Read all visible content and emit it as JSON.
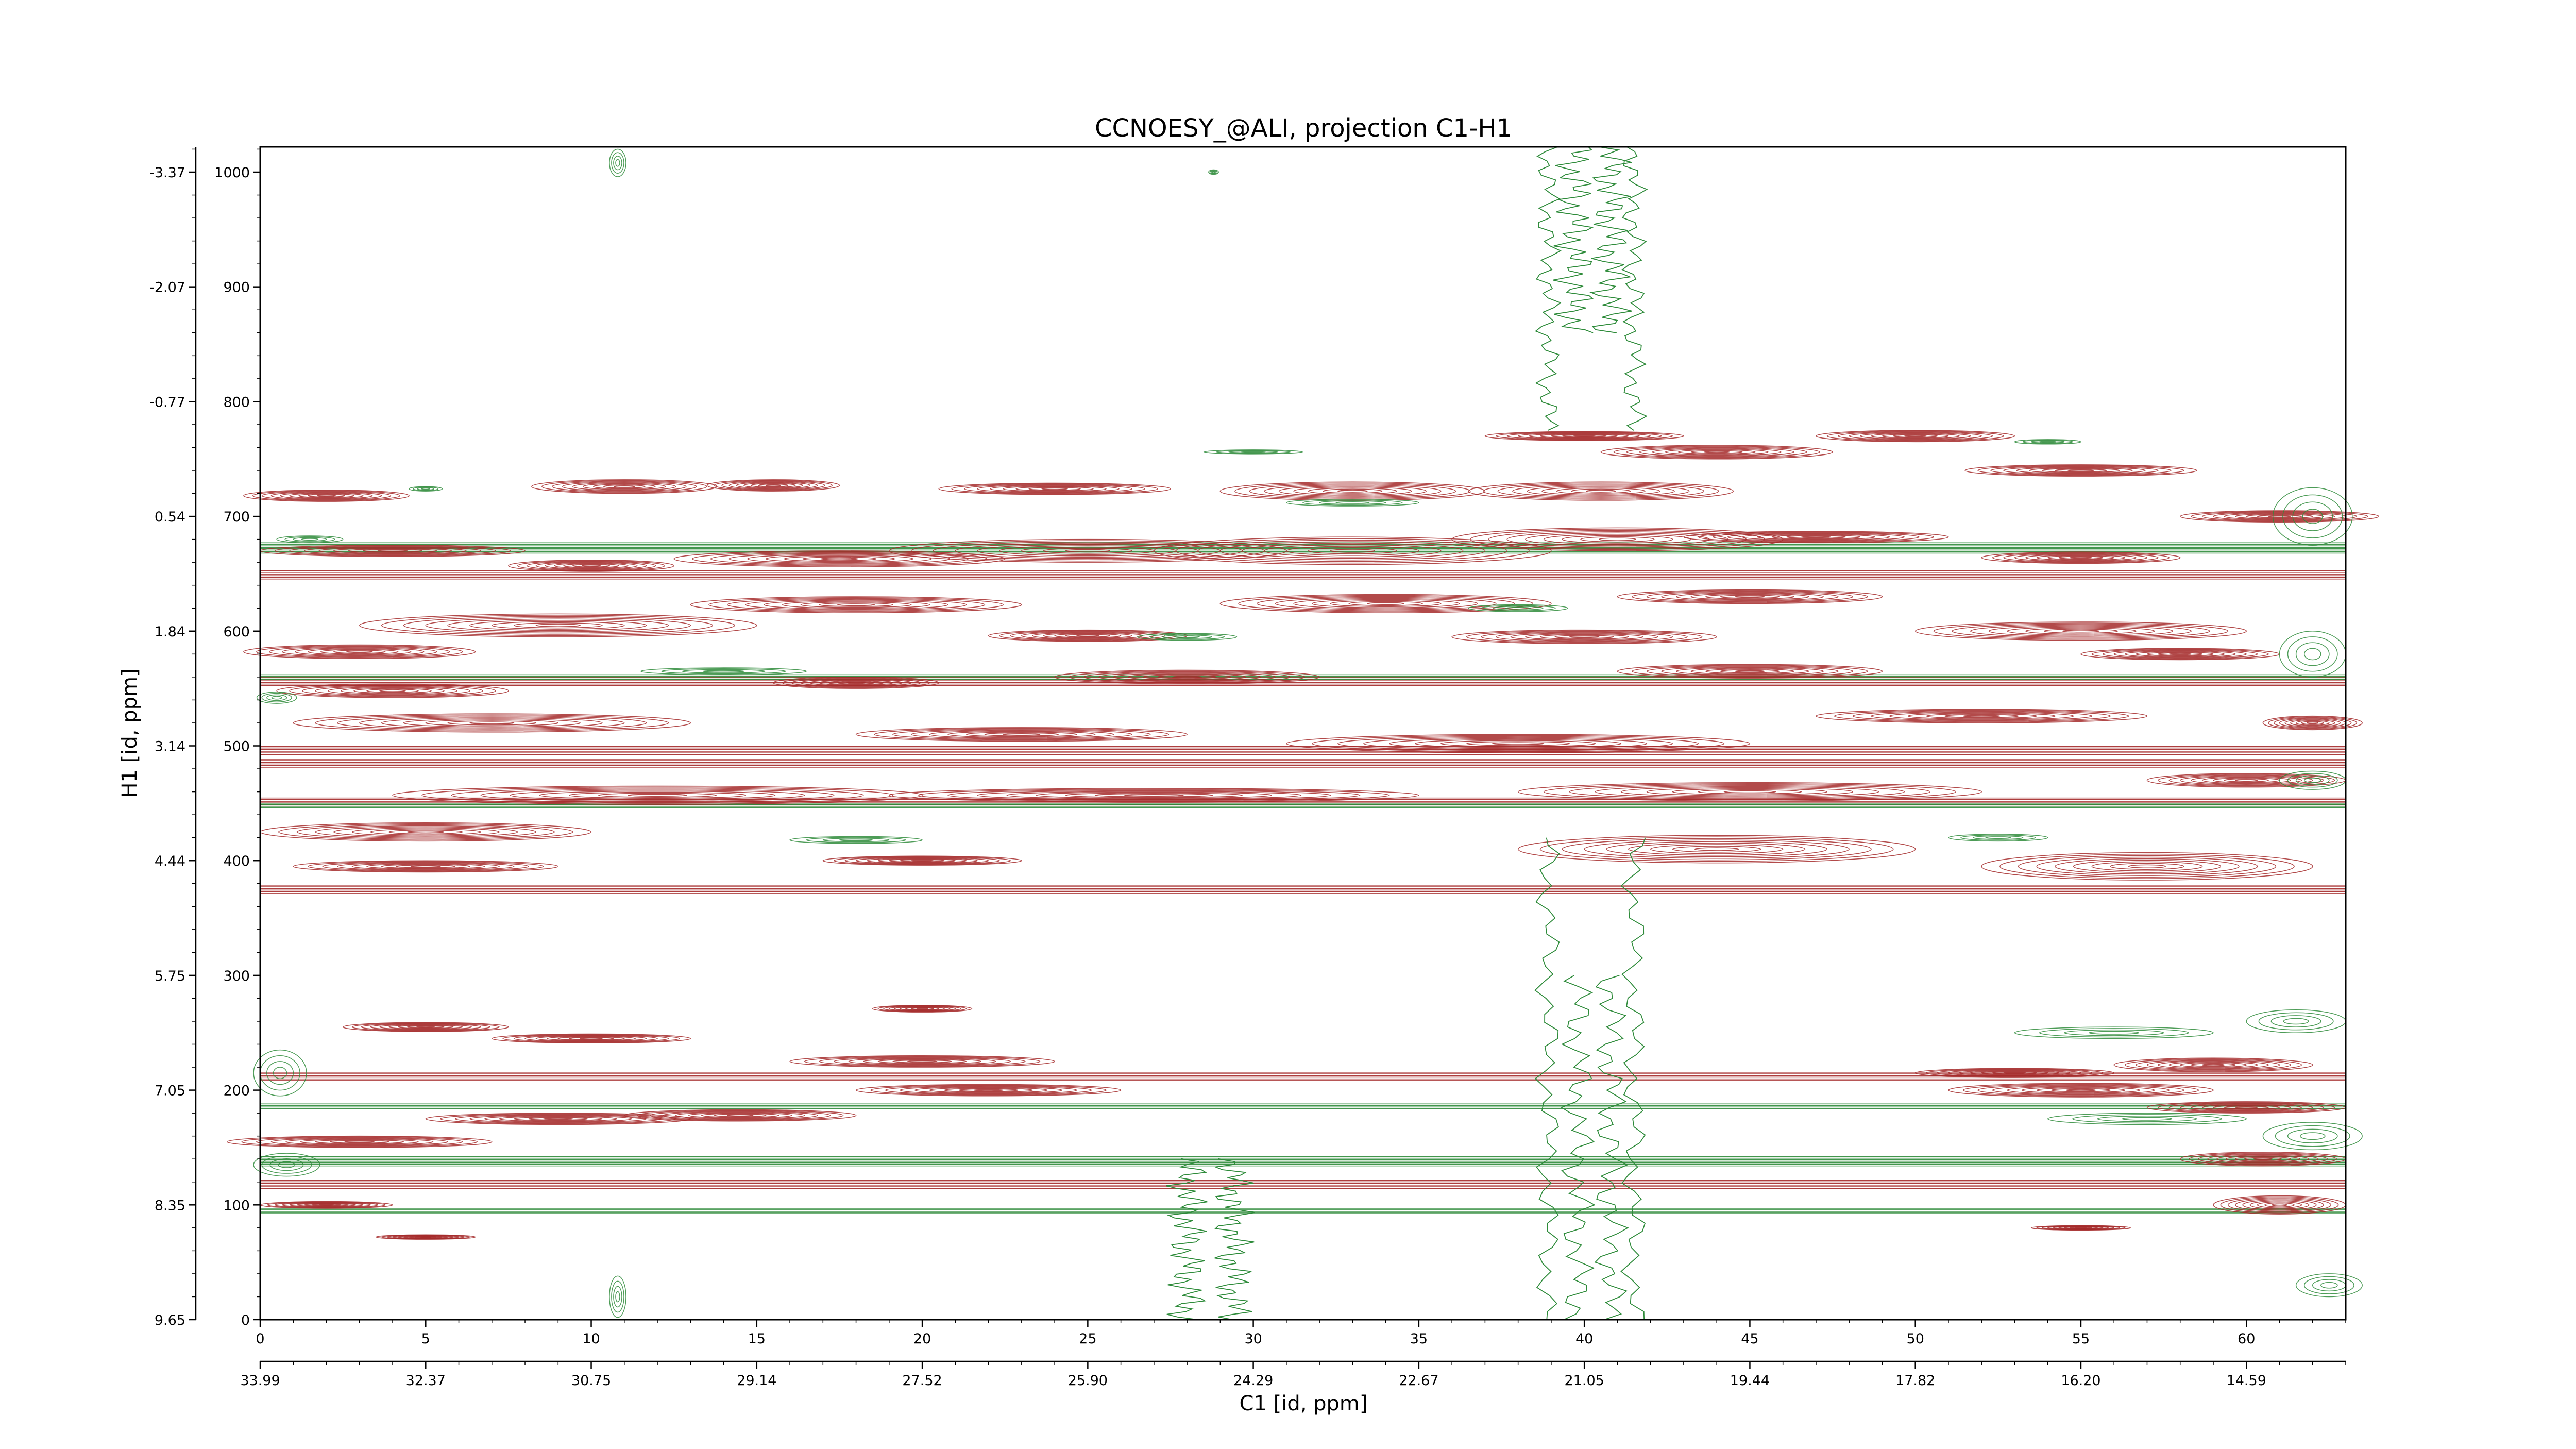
{
  "chart_data": {
    "type": "contour",
    "title": "CCNOESY_@ALI, projection C1-H1",
    "xlabel": "C1 [id, ppm]",
    "ylabel": "H1 [id, ppm]",
    "xlim": [
      0,
      63
    ],
    "ylim": [
      0,
      1022
    ],
    "x_point_ticks": [
      "0",
      "5",
      "10",
      "15",
      "20",
      "25",
      "30",
      "35",
      "40",
      "45",
      "50",
      "55",
      "60"
    ],
    "x_ppm_ticks": [
      "33.99",
      "32.37",
      "30.75",
      "29.14",
      "27.52",
      "25.90",
      "24.29",
      "22.67",
      "21.05",
      "19.44",
      "17.82",
      "16.20",
      "14.59"
    ],
    "y_point_ticks": [
      "0",
      "100",
      "200",
      "300",
      "400",
      "500",
      "600",
      "700",
      "800",
      "900",
      "1000"
    ],
    "y_ppm_ticks": [
      "9.65",
      "8.35",
      "7.05",
      "5.75",
      "4.44",
      "3.14",
      "1.84",
      "0.54",
      "-0.77",
      "-2.07",
      "-3.37"
    ],
    "colors": {
      "positive": "#a52a2a",
      "negative": "#2e8b3a",
      "frame": "#000000"
    },
    "positive_peaks": [
      {
        "x": 2.0,
        "y": 718,
        "rx": 2.5,
        "ry": 5
      },
      {
        "x": 11.0,
        "y": 726,
        "rx": 2.8,
        "ry": 6
      },
      {
        "x": 15.5,
        "y": 727,
        "rx": 2.0,
        "ry": 5
      },
      {
        "x": 24.0,
        "y": 724,
        "rx": 3.5,
        "ry": 5
      },
      {
        "x": 33.0,
        "y": 722,
        "rx": 4.0,
        "ry": 8
      },
      {
        "x": 40.5,
        "y": 722,
        "rx": 4.0,
        "ry": 8
      },
      {
        "x": 44.0,
        "y": 756,
        "rx": 3.5,
        "ry": 6
      },
      {
        "x": 55.0,
        "y": 740,
        "rx": 3.5,
        "ry": 5
      },
      {
        "x": 50.0,
        "y": 770,
        "rx": 3.0,
        "ry": 5
      },
      {
        "x": 40.0,
        "y": 770,
        "rx": 3.0,
        "ry": 4
      },
      {
        "x": 4.0,
        "y": 670,
        "rx": 4.0,
        "ry": 5
      },
      {
        "x": 10.0,
        "y": 657,
        "rx": 2.5,
        "ry": 5
      },
      {
        "x": 17.5,
        "y": 663,
        "rx": 5.0,
        "ry": 7
      },
      {
        "x": 25.0,
        "y": 670,
        "rx": 6.0,
        "ry": 10
      },
      {
        "x": 33.0,
        "y": 670,
        "rx": 6.0,
        "ry": 12
      },
      {
        "x": 41.0,
        "y": 680,
        "rx": 5.0,
        "ry": 10
      },
      {
        "x": 47.0,
        "y": 682,
        "rx": 4.0,
        "ry": 5
      },
      {
        "x": 55.0,
        "y": 664,
        "rx": 3.0,
        "ry": 5
      },
      {
        "x": 61.0,
        "y": 700,
        "rx": 3.0,
        "ry": 5
      },
      {
        "x": 9.0,
        "y": 605,
        "rx": 6.0,
        "ry": 10
      },
      {
        "x": 18.0,
        "y": 623,
        "rx": 5.0,
        "ry": 7
      },
      {
        "x": 34.0,
        "y": 624,
        "rx": 5.0,
        "ry": 8
      },
      {
        "x": 45.0,
        "y": 630,
        "rx": 4.0,
        "ry": 6
      },
      {
        "x": 55.0,
        "y": 600,
        "rx": 5.0,
        "ry": 8
      },
      {
        "x": 3.0,
        "y": 582,
        "rx": 3.5,
        "ry": 6
      },
      {
        "x": 25.0,
        "y": 596,
        "rx": 3.0,
        "ry": 5
      },
      {
        "x": 40.0,
        "y": 595,
        "rx": 4.0,
        "ry": 6
      },
      {
        "x": 4.0,
        "y": 548,
        "rx": 3.5,
        "ry": 6
      },
      {
        "x": 18.0,
        "y": 555,
        "rx": 2.5,
        "ry": 5
      },
      {
        "x": 28.0,
        "y": 560,
        "rx": 4.0,
        "ry": 6
      },
      {
        "x": 45.0,
        "y": 565,
        "rx": 4.0,
        "ry": 6
      },
      {
        "x": 58.0,
        "y": 580,
        "rx": 3.0,
        "ry": 5
      },
      {
        "x": 7.0,
        "y": 520,
        "rx": 6.0,
        "ry": 8
      },
      {
        "x": 23.0,
        "y": 510,
        "rx": 5.0,
        "ry": 6
      },
      {
        "x": 38.0,
        "y": 502,
        "rx": 7.0,
        "ry": 8
      },
      {
        "x": 52.0,
        "y": 526,
        "rx": 5.0,
        "ry": 6
      },
      {
        "x": 62.0,
        "y": 520,
        "rx": 1.5,
        "ry": 6
      },
      {
        "x": 12.0,
        "y": 457,
        "rx": 8.0,
        "ry": 8
      },
      {
        "x": 27.0,
        "y": 457,
        "rx": 8.0,
        "ry": 6
      },
      {
        "x": 45.0,
        "y": 460,
        "rx": 7.0,
        "ry": 8
      },
      {
        "x": 60.0,
        "y": 470,
        "rx": 3.0,
        "ry": 6
      },
      {
        "x": 5.0,
        "y": 425,
        "rx": 5.0,
        "ry": 8
      },
      {
        "x": 20.0,
        "y": 400,
        "rx": 3.0,
        "ry": 4
      },
      {
        "x": 44.0,
        "y": 410,
        "rx": 6.0,
        "ry": 12
      },
      {
        "x": 57.0,
        "y": 395,
        "rx": 5.0,
        "ry": 12
      },
      {
        "x": 5.0,
        "y": 395,
        "rx": 4.0,
        "ry": 5
      },
      {
        "x": 20.0,
        "y": 271,
        "rx": 1.5,
        "ry": 3
      },
      {
        "x": 5.0,
        "y": 255,
        "rx": 2.5,
        "ry": 4
      },
      {
        "x": 10.0,
        "y": 245,
        "rx": 3.0,
        "ry": 4
      },
      {
        "x": 20.0,
        "y": 225,
        "rx": 4.0,
        "ry": 5
      },
      {
        "x": 9.0,
        "y": 175,
        "rx": 4.0,
        "ry": 5
      },
      {
        "x": 14.5,
        "y": 178,
        "rx": 3.5,
        "ry": 5
      },
      {
        "x": 22.0,
        "y": 200,
        "rx": 4.0,
        "ry": 5
      },
      {
        "x": 53.0,
        "y": 215,
        "rx": 3.0,
        "ry": 4
      },
      {
        "x": 59.0,
        "y": 222,
        "rx": 3.0,
        "ry": 6
      },
      {
        "x": 55.0,
        "y": 200,
        "rx": 4.0,
        "ry": 6
      },
      {
        "x": 60.0,
        "y": 185,
        "rx": 3.0,
        "ry": 5
      },
      {
        "x": 3.0,
        "y": 155,
        "rx": 4.0,
        "ry": 5
      },
      {
        "x": 60.5,
        "y": 140,
        "rx": 2.5,
        "ry": 6
      },
      {
        "x": 61.0,
        "y": 100,
        "rx": 2.0,
        "ry": 8
      },
      {
        "x": 5.0,
        "y": 72,
        "rx": 1.5,
        "ry": 2
      },
      {
        "x": 2.0,
        "y": 100,
        "rx": 2.0,
        "ry": 3
      },
      {
        "x": 55.0,
        "y": 80,
        "rx": 1.5,
        "ry": 2
      }
    ],
    "positive_bands": [
      {
        "y": 375,
        "x0": 0,
        "x1": 63
      },
      {
        "y": 496,
        "x0": 0,
        "x1": 63
      },
      {
        "y": 485,
        "x0": 0,
        "x1": 63
      },
      {
        "y": 451,
        "x0": 0,
        "x1": 63
      },
      {
        "y": 212,
        "x0": 0,
        "x1": 63
      },
      {
        "y": 118,
        "x0": 0,
        "x1": 63
      },
      {
        "y": 649,
        "x0": 0,
        "x1": 63
      },
      {
        "y": 556,
        "x0": 0,
        "x1": 63
      }
    ],
    "negative_peaks": [
      {
        "x": 10.8,
        "y": 1008,
        "rx": 0.25,
        "ry": 12
      },
      {
        "x": 10.8,
        "y": 20,
        "rx": 0.25,
        "ry": 18
      },
      {
        "x": 28.8,
        "y": 1000,
        "rx": 0.15,
        "ry": 2
      },
      {
        "x": 0.5,
        "y": 542,
        "rx": 0.6,
        "ry": 5
      },
      {
        "x": 1.5,
        "y": 680,
        "rx": 1.0,
        "ry": 3
      },
      {
        "x": 5.0,
        "y": 724,
        "rx": 0.5,
        "ry": 2
      },
      {
        "x": 30.0,
        "y": 756,
        "rx": 1.5,
        "ry": 2
      },
      {
        "x": 33.0,
        "y": 712,
        "rx": 2.0,
        "ry": 3
      },
      {
        "x": 54.0,
        "y": 765,
        "rx": 1.0,
        "ry": 2
      },
      {
        "x": 62.0,
        "y": 700,
        "rx": 1.2,
        "ry": 25
      },
      {
        "x": 62.0,
        "y": 580,
        "rx": 1.0,
        "ry": 20
      },
      {
        "x": 62.0,
        "y": 470,
        "rx": 1.0,
        "ry": 8
      },
      {
        "x": 14.0,
        "y": 565,
        "rx": 2.5,
        "ry": 3
      },
      {
        "x": 28.0,
        "y": 595,
        "rx": 1.5,
        "ry": 3
      },
      {
        "x": 38.0,
        "y": 620,
        "rx": 1.5,
        "ry": 3
      },
      {
        "x": 0.6,
        "y": 215,
        "rx": 0.8,
        "ry": 20
      },
      {
        "x": 0.8,
        "y": 135,
        "rx": 1.0,
        "ry": 10
      },
      {
        "x": 61.5,
        "y": 260,
        "rx": 1.5,
        "ry": 10
      },
      {
        "x": 56.0,
        "y": 250,
        "rx": 3.0,
        "ry": 5
      },
      {
        "x": 57.0,
        "y": 175,
        "rx": 3.0,
        "ry": 5
      },
      {
        "x": 62.0,
        "y": 160,
        "rx": 1.5,
        "ry": 12
      },
      {
        "x": 62.5,
        "y": 30,
        "rx": 1.0,
        "ry": 10
      },
      {
        "x": 52.5,
        "y": 420,
        "rx": 1.5,
        "ry": 3
      },
      {
        "x": 18.0,
        "y": 418,
        "rx": 2.0,
        "ry": 3
      }
    ],
    "negative_bands": [
      {
        "y": 140,
        "x0": 0,
        "x1": 63
      },
      {
        "y": 136,
        "x0": 0,
        "x1": 63
      },
      {
        "y": 675,
        "x0": 0,
        "x1": 63
      },
      {
        "y": 670,
        "x0": 0,
        "x1": 63
      },
      {
        "y": 186,
        "x0": 0,
        "x1": 63
      },
      {
        "y": 95,
        "x0": 0,
        "x1": 63
      },
      {
        "y": 448,
        "x0": 0,
        "x1": 63
      },
      {
        "y": 560,
        "x0": 0,
        "x1": 63
      }
    ],
    "negative_columns": [
      {
        "x": 38.9,
        "y0": 775,
        "y1": 1022,
        "w": 0.3
      },
      {
        "x": 39.7,
        "y0": 860,
        "y1": 1022,
        "w": 0.5
      },
      {
        "x": 40.8,
        "y0": 860,
        "y1": 1022,
        "w": 0.5
      },
      {
        "x": 41.5,
        "y0": 775,
        "y1": 1022,
        "w": 0.3
      },
      {
        "x": 38.9,
        "y0": 0,
        "y1": 420,
        "w": 0.3
      },
      {
        "x": 39.8,
        "y0": 0,
        "y1": 300,
        "w": 0.4
      },
      {
        "x": 40.8,
        "y0": 0,
        "y1": 300,
        "w": 0.4
      },
      {
        "x": 41.5,
        "y0": 0,
        "y1": 420,
        "w": 0.3
      },
      {
        "x": 28.0,
        "y0": 0,
        "y1": 140,
        "w": 0.5
      },
      {
        "x": 29.4,
        "y0": 0,
        "y1": 140,
        "w": 0.5
      }
    ]
  }
}
